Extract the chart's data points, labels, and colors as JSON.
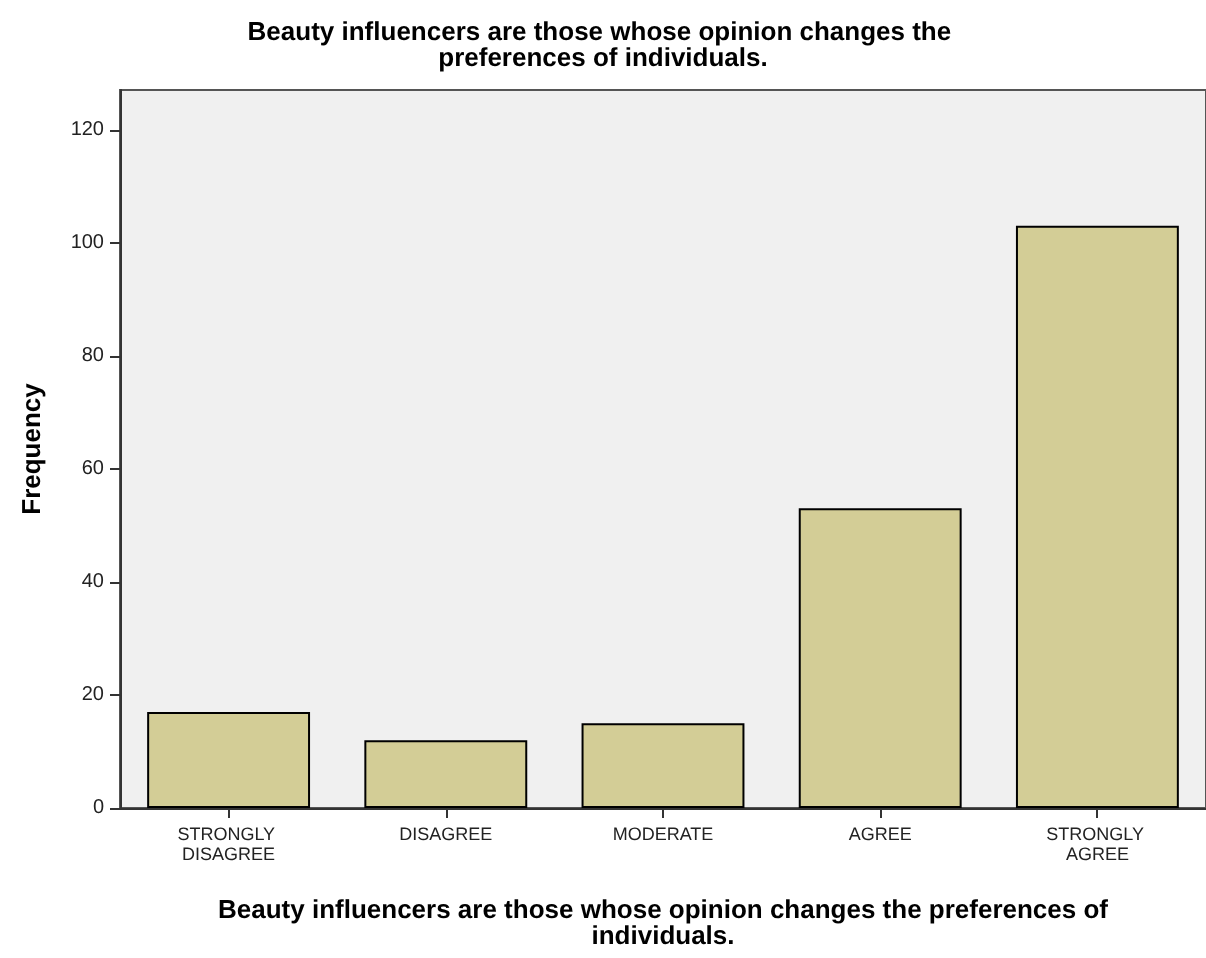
{
  "chart_data": {
    "type": "bar",
    "title": "Beauty influencers are those whose opinion changes the preferences of individuals.",
    "xlabel": "Beauty influencers are those whose opinion changes the preferences of individuals.",
    "ylabel": "Frequency",
    "categories": [
      "STRONGLY DISAGREE",
      "DISAGREE",
      "MODERATE",
      "AGREE",
      "STRONGLY AGREE"
    ],
    "values": [
      17,
      12,
      15,
      53,
      103
    ],
    "color": "#d3cd96",
    "ylim": [
      0,
      127
    ],
    "yticks": [
      0,
      20,
      40,
      60,
      80,
      100,
      120
    ],
    "grid": false
  }
}
